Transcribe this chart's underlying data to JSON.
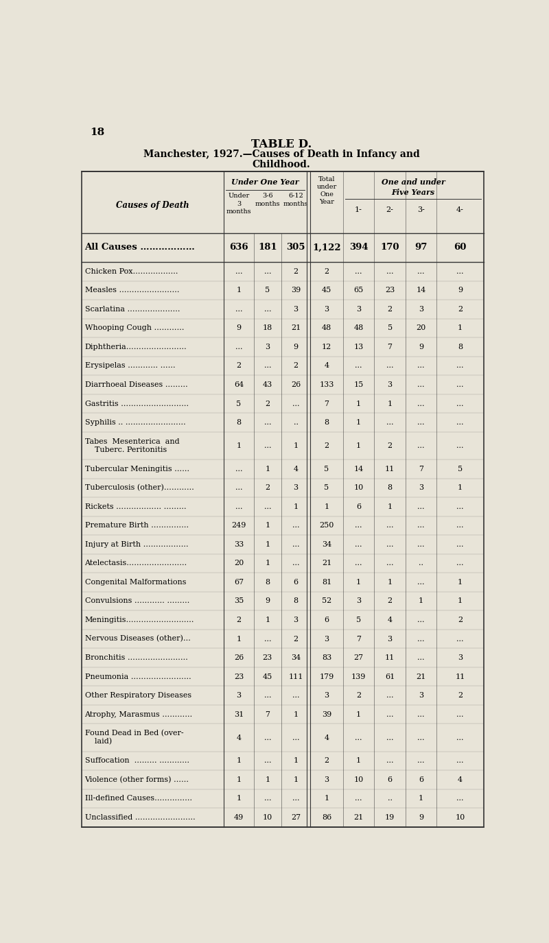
{
  "title_line1": "TABLE D.",
  "title_line2": "Manchester, 1927.—Causes of Death in Infancy and",
  "title_line3": "Childhood.",
  "page_number": "18",
  "header_col0": "Causes of Death",
  "header_under_one_year": "Under One Year",
  "header_sub1": "Under\n3\nmonths",
  "header_sub2": "3-6\nmonths",
  "header_sub3": "6-12\nmonths",
  "header_total": "Total\nunder\nOne\nYear",
  "header_one_under_five": "One and under\nFive Years",
  "header_age1": "1-",
  "header_age2": "2-",
  "header_age3": "3-",
  "header_age4": "4-",
  "rows": [
    [
      "All Causes ………………",
      "636",
      "181",
      "305",
      "1,122",
      "394",
      "170",
      "97",
      "60"
    ],
    [
      "Chicken Pox………………",
      "...",
      "...",
      "2",
      "2",
      "...",
      "...",
      "...",
      "..."
    ],
    [
      "Measles ……………………",
      "1",
      "5",
      "39",
      "45",
      "65",
      "23",
      "14",
      "9"
    ],
    [
      "Scarlatina …………………",
      "...",
      "...",
      "3",
      "3",
      "3",
      "2",
      "3",
      "2"
    ],
    [
      "Whooping Cough …………",
      "9",
      "18",
      "21",
      "48",
      "48",
      "5",
      "20",
      "1"
    ],
    [
      "Diphtheria……………………",
      "...",
      "3",
      "9",
      "12",
      "13",
      "7",
      "9",
      "8"
    ],
    [
      "Erysipelas ………… ……",
      "2",
      "...",
      "2",
      "4",
      "...",
      "...",
      "...",
      "..."
    ],
    [
      "Diarrhoeal Diseases ………",
      "64",
      "43",
      "26",
      "133",
      "15",
      "3",
      "...",
      "..."
    ],
    [
      "Gastritis ………………………",
      "5",
      "2",
      "...",
      "7",
      "1",
      "1",
      "...",
      "..."
    ],
    [
      "Syphilis .. ……………………",
      "8",
      "...",
      "..",
      "8",
      "1",
      "...",
      "...",
      "..."
    ],
    [
      "Tabes  Mesenterica  and\n    Tuberc. Peritonitis",
      "1",
      "...",
      "1",
      "2",
      "1",
      "2",
      "...",
      "..."
    ],
    [
      "Tubercular Meningitis ……",
      "...",
      "1",
      "4",
      "5",
      "14",
      "11",
      "7",
      "5"
    ],
    [
      "Tuberculosis (other)…………",
      "...",
      "2",
      "3",
      "5",
      "10",
      "8",
      "3",
      "1"
    ],
    [
      "Rickets ……………… ………",
      "...",
      "...",
      "1",
      "1",
      "6",
      "1",
      "...",
      "..."
    ],
    [
      "Premature Birth ……………",
      "249",
      "1",
      "...",
      "250",
      "...",
      "...",
      "...",
      "..."
    ],
    [
      "Injury at Birth ………………",
      "33",
      "1",
      "...",
      "34",
      "...",
      "...",
      "...",
      "..."
    ],
    [
      "Atelectasis……………………",
      "20",
      "1",
      "...",
      "21",
      "...",
      "...",
      "..",
      "..."
    ],
    [
      "Congenital Malformations",
      "67",
      "8",
      "6",
      "81",
      "1",
      "1",
      "...",
      "1"
    ],
    [
      "Convulsions ………… ………",
      "35",
      "9",
      "8",
      "52",
      "3",
      "2",
      "1",
      "1"
    ],
    [
      "Meningitis………………………",
      "2",
      "1",
      "3",
      "6",
      "5",
      "4",
      "...",
      "2"
    ],
    [
      "Nervous Diseases (other)…",
      "1",
      "...",
      "2",
      "3",
      "7",
      "3",
      "...",
      "..."
    ],
    [
      "Bronchitis ……………………",
      "26",
      "23",
      "34",
      "83",
      "27",
      "11",
      "...",
      "3"
    ],
    [
      "Pneumonia ……………………",
      "23",
      "45",
      "111",
      "179",
      "139",
      "61",
      "21",
      "11"
    ],
    [
      "Other Respiratory Diseases",
      "3",
      "...",
      "...",
      "3",
      "2",
      "...",
      "3",
      "2"
    ],
    [
      "Atrophy, Marasmus …………",
      "31",
      "7",
      "1",
      "39",
      "1",
      "...",
      "...",
      "..."
    ],
    [
      "Found Dead in Bed (over-\n    laid)",
      "4",
      "...",
      "...",
      "4",
      "...",
      "...",
      "...",
      "..."
    ],
    [
      "Suffocation  ……… …………",
      "1",
      "...",
      "1",
      "2",
      "1",
      "...",
      "...",
      "..."
    ],
    [
      "Violence (other forms) ……",
      "1",
      "1",
      "1",
      "3",
      "10",
      "6",
      "6",
      "4"
    ],
    [
      "Ill-defined Causes……………",
      "1",
      "...",
      "...",
      "1",
      "...",
      "..",
      "1",
      "..."
    ],
    [
      "Unclassified ……………………",
      "49",
      "10",
      "27",
      "86",
      "21",
      "19",
      "9",
      "10"
    ]
  ],
  "bold_row": 0,
  "bg_color": "#e8e4d8",
  "text_color": "#000000",
  "border_color": "#333333"
}
